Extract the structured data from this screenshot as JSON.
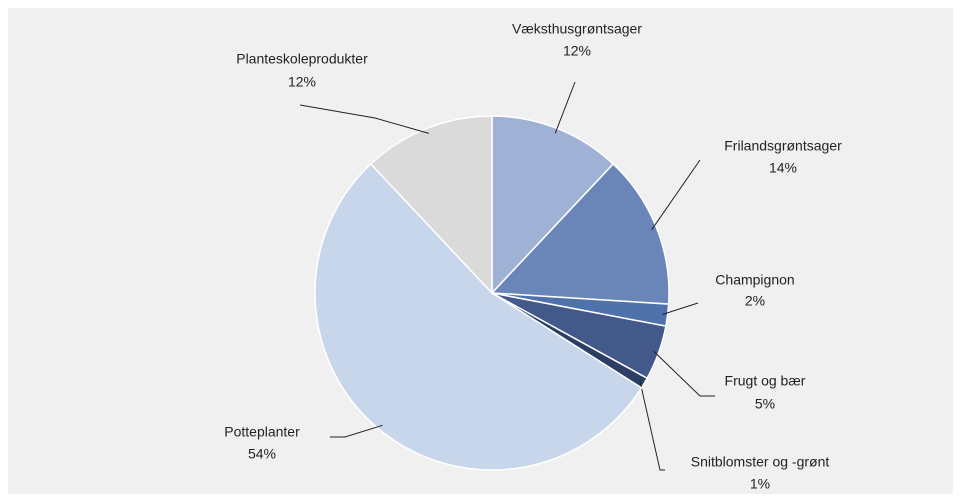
{
  "chart_data": {
    "type": "pie",
    "categories": [
      "Væksthusgrøntsager",
      "Frilandsgrøntsager",
      "Champignon",
      "Frugt og bær",
      "Snitblomster og -grønt",
      "Potteplanter",
      "Planteskoleprodukter"
    ],
    "values": [
      12,
      14,
      2,
      5,
      1,
      54,
      12
    ],
    "value_labels": [
      "12%",
      "14%",
      "2%",
      "5%",
      "1%",
      "54%",
      "12%"
    ],
    "colors": [
      "#9fb1d4",
      "#6a86b8",
      "#5072ab",
      "#42598a",
      "#2c3e66",
      "#c7d6ea",
      "#dadada"
    ]
  }
}
